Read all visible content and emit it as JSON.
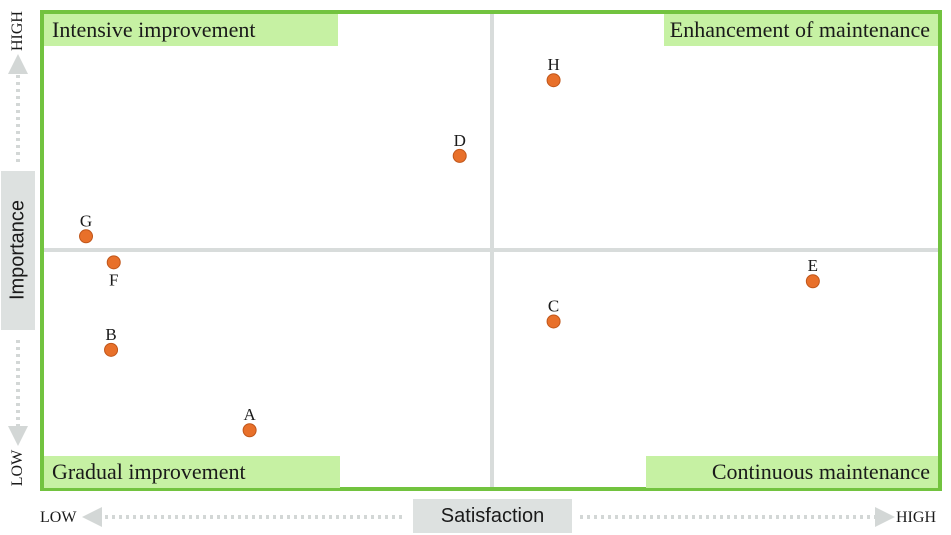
{
  "chart_data": {
    "type": "scatter",
    "title": "",
    "xlabel": "Satisfaction",
    "ylabel": "Importance",
    "x_low_label": "LOW",
    "x_high_label": "HIGH",
    "y_low_label": "LOW",
    "y_high_label": "HIGH",
    "xlim": [
      0,
      100
    ],
    "ylim": [
      0,
      100
    ],
    "quadrants": {
      "top_left": "Intensive improvement",
      "top_right": "Enhancement of maintenance",
      "bottom_left": "Gradual improvement",
      "bottom_right": "Continuous maintenance"
    },
    "point_color": "#e8702a",
    "frame_color": "#72c33f",
    "quadrant_fill": "#c6f1a3",
    "divider_color": "#d8dcdb",
    "points": [
      {
        "label": "A",
        "x": 23,
        "y": 12,
        "label_pos": "above"
      },
      {
        "label": "B",
        "x": 7.5,
        "y": 29,
        "label_pos": "above"
      },
      {
        "label": "C",
        "x": 57,
        "y": 35,
        "label_pos": "above"
      },
      {
        "label": "D",
        "x": 46.5,
        "y": 70,
        "label_pos": "above"
      },
      {
        "label": "E",
        "x": 86,
        "y": 43.5,
        "label_pos": "above"
      },
      {
        "label": "F",
        "x": 7.8,
        "y": 47.5,
        "label_pos": "below"
      },
      {
        "label": "G",
        "x": 4.7,
        "y": 53,
        "label_pos": "above"
      },
      {
        "label": "H",
        "x": 57,
        "y": 86,
        "label_pos": "above"
      }
    ]
  }
}
